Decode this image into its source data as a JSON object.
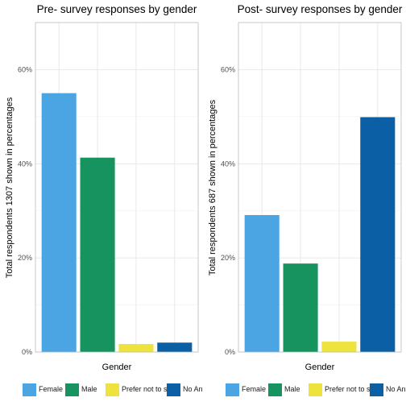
{
  "colors": {
    "Female": "#4ba5e3",
    "Male": "#17935f",
    "Prefer not to say": "#ede33c",
    "No Answer": "#0b5fa5"
  },
  "chart_data": [
    {
      "type": "bar",
      "title": "Pre- survey responses by gender",
      "xlabel": "Gender",
      "ylabel": "Total respondents 1307 shown in percentages",
      "categories": [
        "Female",
        "Male",
        "Prefer not to say",
        "No Answer"
      ],
      "values": [
        55.0,
        41.3,
        1.7,
        2.0
      ],
      "ylim": [
        0,
        70
      ],
      "yticks": [
        0,
        20,
        40,
        60
      ],
      "ytick_labels": [
        "0%",
        "20%",
        "40%",
        "60%"
      ],
      "grid": true,
      "legend": {
        "position": "bottom",
        "entries": [
          "Female",
          "Male",
          "Prefer not to say",
          "No Ans"
        ]
      }
    },
    {
      "type": "bar",
      "title": "Post- survey responses by gender",
      "xlabel": "Gender",
      "ylabel": "Total respondents 687 shown in percentages",
      "categories": [
        "Female",
        "Male",
        "Prefer not to say",
        "No Answer"
      ],
      "values": [
        29.1,
        18.8,
        2.2,
        49.9
      ],
      "ylim": [
        0,
        70
      ],
      "yticks": [
        0,
        20,
        40,
        60
      ],
      "ytick_labels": [
        "0%",
        "20%",
        "40%",
        "60%"
      ],
      "grid": true,
      "legend": {
        "position": "bottom",
        "entries": [
          "Female",
          "Male",
          "Prefer not to say",
          "No Ans"
        ]
      }
    }
  ]
}
